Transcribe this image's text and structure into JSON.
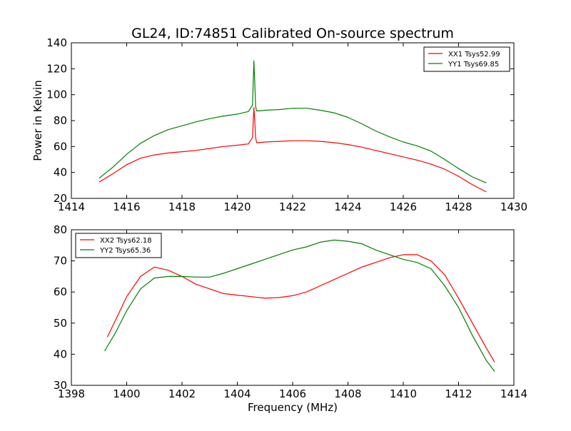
{
  "chart_data": [
    {
      "type": "line",
      "title": "GL24, ID:74851 Calibrated On-source spectrum",
      "xlabel": "",
      "ylabel": "Power in Kelvin",
      "xlim": [
        1414,
        1430
      ],
      "ylim": [
        20,
        140
      ],
      "xticks": [
        "1414",
        "1416",
        "1418",
        "1420",
        "1422",
        "1424",
        "1426",
        "1428",
        "1430"
      ],
      "yticks": [
        "20",
        "40",
        "60",
        "80",
        "100",
        "120",
        "140"
      ],
      "legend_position": "top-right",
      "series": [
        {
          "name": "XX1 Tsys52.99",
          "color": "#ff0000",
          "x": [
            1415.0,
            1415.5,
            1416.0,
            1416.5,
            1417.0,
            1417.5,
            1418.0,
            1418.5,
            1419.0,
            1419.5,
            1420.0,
            1420.4,
            1420.55,
            1420.6,
            1420.63,
            1420.66,
            1420.7,
            1420.8,
            1421.0,
            1421.5,
            1422.0,
            1422.5,
            1423.0,
            1423.5,
            1424.0,
            1424.5,
            1425.0,
            1425.5,
            1426.0,
            1426.5,
            1427.0,
            1427.5,
            1428.0,
            1428.5,
            1429.0
          ],
          "values": [
            32.5,
            39,
            46,
            51,
            53.5,
            55,
            56,
            57,
            58.5,
            60,
            61,
            62,
            67,
            90,
            80,
            67,
            63,
            63,
            63.5,
            64,
            64.5,
            64.5,
            64,
            63,
            61.5,
            59.5,
            57,
            54.5,
            52,
            49.5,
            46.5,
            42.5,
            37,
            30.5,
            25
          ]
        },
        {
          "name": "YY1 Tsys69.85",
          "color": "#008000",
          "x": [
            1415.0,
            1415.5,
            1416.0,
            1416.5,
            1417.0,
            1417.5,
            1418.0,
            1418.5,
            1419.0,
            1419.5,
            1420.0,
            1420.4,
            1420.55,
            1420.6,
            1420.63,
            1420.66,
            1420.7,
            1420.8,
            1421.0,
            1421.5,
            1422.0,
            1422.5,
            1423.0,
            1423.5,
            1424.0,
            1424.5,
            1425.0,
            1425.5,
            1426.0,
            1426.5,
            1427.0,
            1427.5,
            1428.0,
            1428.5,
            1429.0
          ],
          "values": [
            35.5,
            44,
            54,
            62.5,
            68.5,
            73,
            76,
            79,
            81.5,
            83.5,
            85,
            87,
            92,
            126,
            110,
            91,
            87.5,
            87.5,
            88,
            88.5,
            89.5,
            89.5,
            88,
            86,
            82.5,
            77.5,
            72,
            67.5,
            63.5,
            60.5,
            56.5,
            50,
            43,
            36.5,
            32
          ]
        }
      ]
    },
    {
      "type": "line",
      "title": "",
      "xlabel": "Frequency (MHz)",
      "ylabel": "",
      "xlim": [
        1398,
        1414
      ],
      "ylim": [
        30,
        80
      ],
      "xticks": [
        "1398",
        "1400",
        "1402",
        "1404",
        "1406",
        "1408",
        "1410",
        "1412",
        "1414"
      ],
      "yticks": [
        "30",
        "40",
        "50",
        "60",
        "70",
        "80"
      ],
      "legend_position": "top-left",
      "series": [
        {
          "name": "XX2 Tsys62.18",
          "color": "#ff0000",
          "x": [
            1399.3,
            1399.6,
            1400.0,
            1400.5,
            1401.0,
            1401.5,
            1402.0,
            1402.5,
            1403.0,
            1403.5,
            1404.0,
            1404.5,
            1405.0,
            1405.5,
            1406.0,
            1406.5,
            1407.0,
            1407.5,
            1408.0,
            1408.5,
            1409.0,
            1409.5,
            1410.0,
            1410.5,
            1411.0,
            1411.5,
            1412.0,
            1412.5,
            1413.0,
            1413.3
          ],
          "values": [
            45.5,
            51,
            58.5,
            65,
            68,
            67,
            65,
            62.5,
            61,
            59.5,
            59,
            58.5,
            58,
            58.2,
            58.8,
            60,
            62,
            64,
            66,
            68,
            69.5,
            71,
            72,
            72,
            70,
            65.5,
            58,
            50,
            42,
            37.5
          ]
        },
        {
          "name": "YY2 Tsys65.36",
          "color": "#008000",
          "x": [
            1399.2,
            1399.6,
            1400.0,
            1400.5,
            1401.0,
            1401.5,
            1402.0,
            1402.5,
            1403.0,
            1403.5,
            1404.0,
            1404.5,
            1405.0,
            1405.5,
            1406.0,
            1406.5,
            1407.0,
            1407.5,
            1408.0,
            1408.5,
            1409.0,
            1409.5,
            1410.0,
            1410.5,
            1411.0,
            1411.5,
            1412.0,
            1412.5,
            1413.0,
            1413.3
          ],
          "values": [
            41,
            47,
            54,
            61,
            64.5,
            65,
            65,
            64.8,
            64.8,
            66,
            67.5,
            69,
            70.5,
            72,
            73.5,
            74.5,
            76,
            76.7,
            76.3,
            75.5,
            73.5,
            72,
            70.5,
            69.5,
            67.5,
            62,
            55,
            46,
            38,
            34.5
          ]
        }
      ]
    }
  ]
}
